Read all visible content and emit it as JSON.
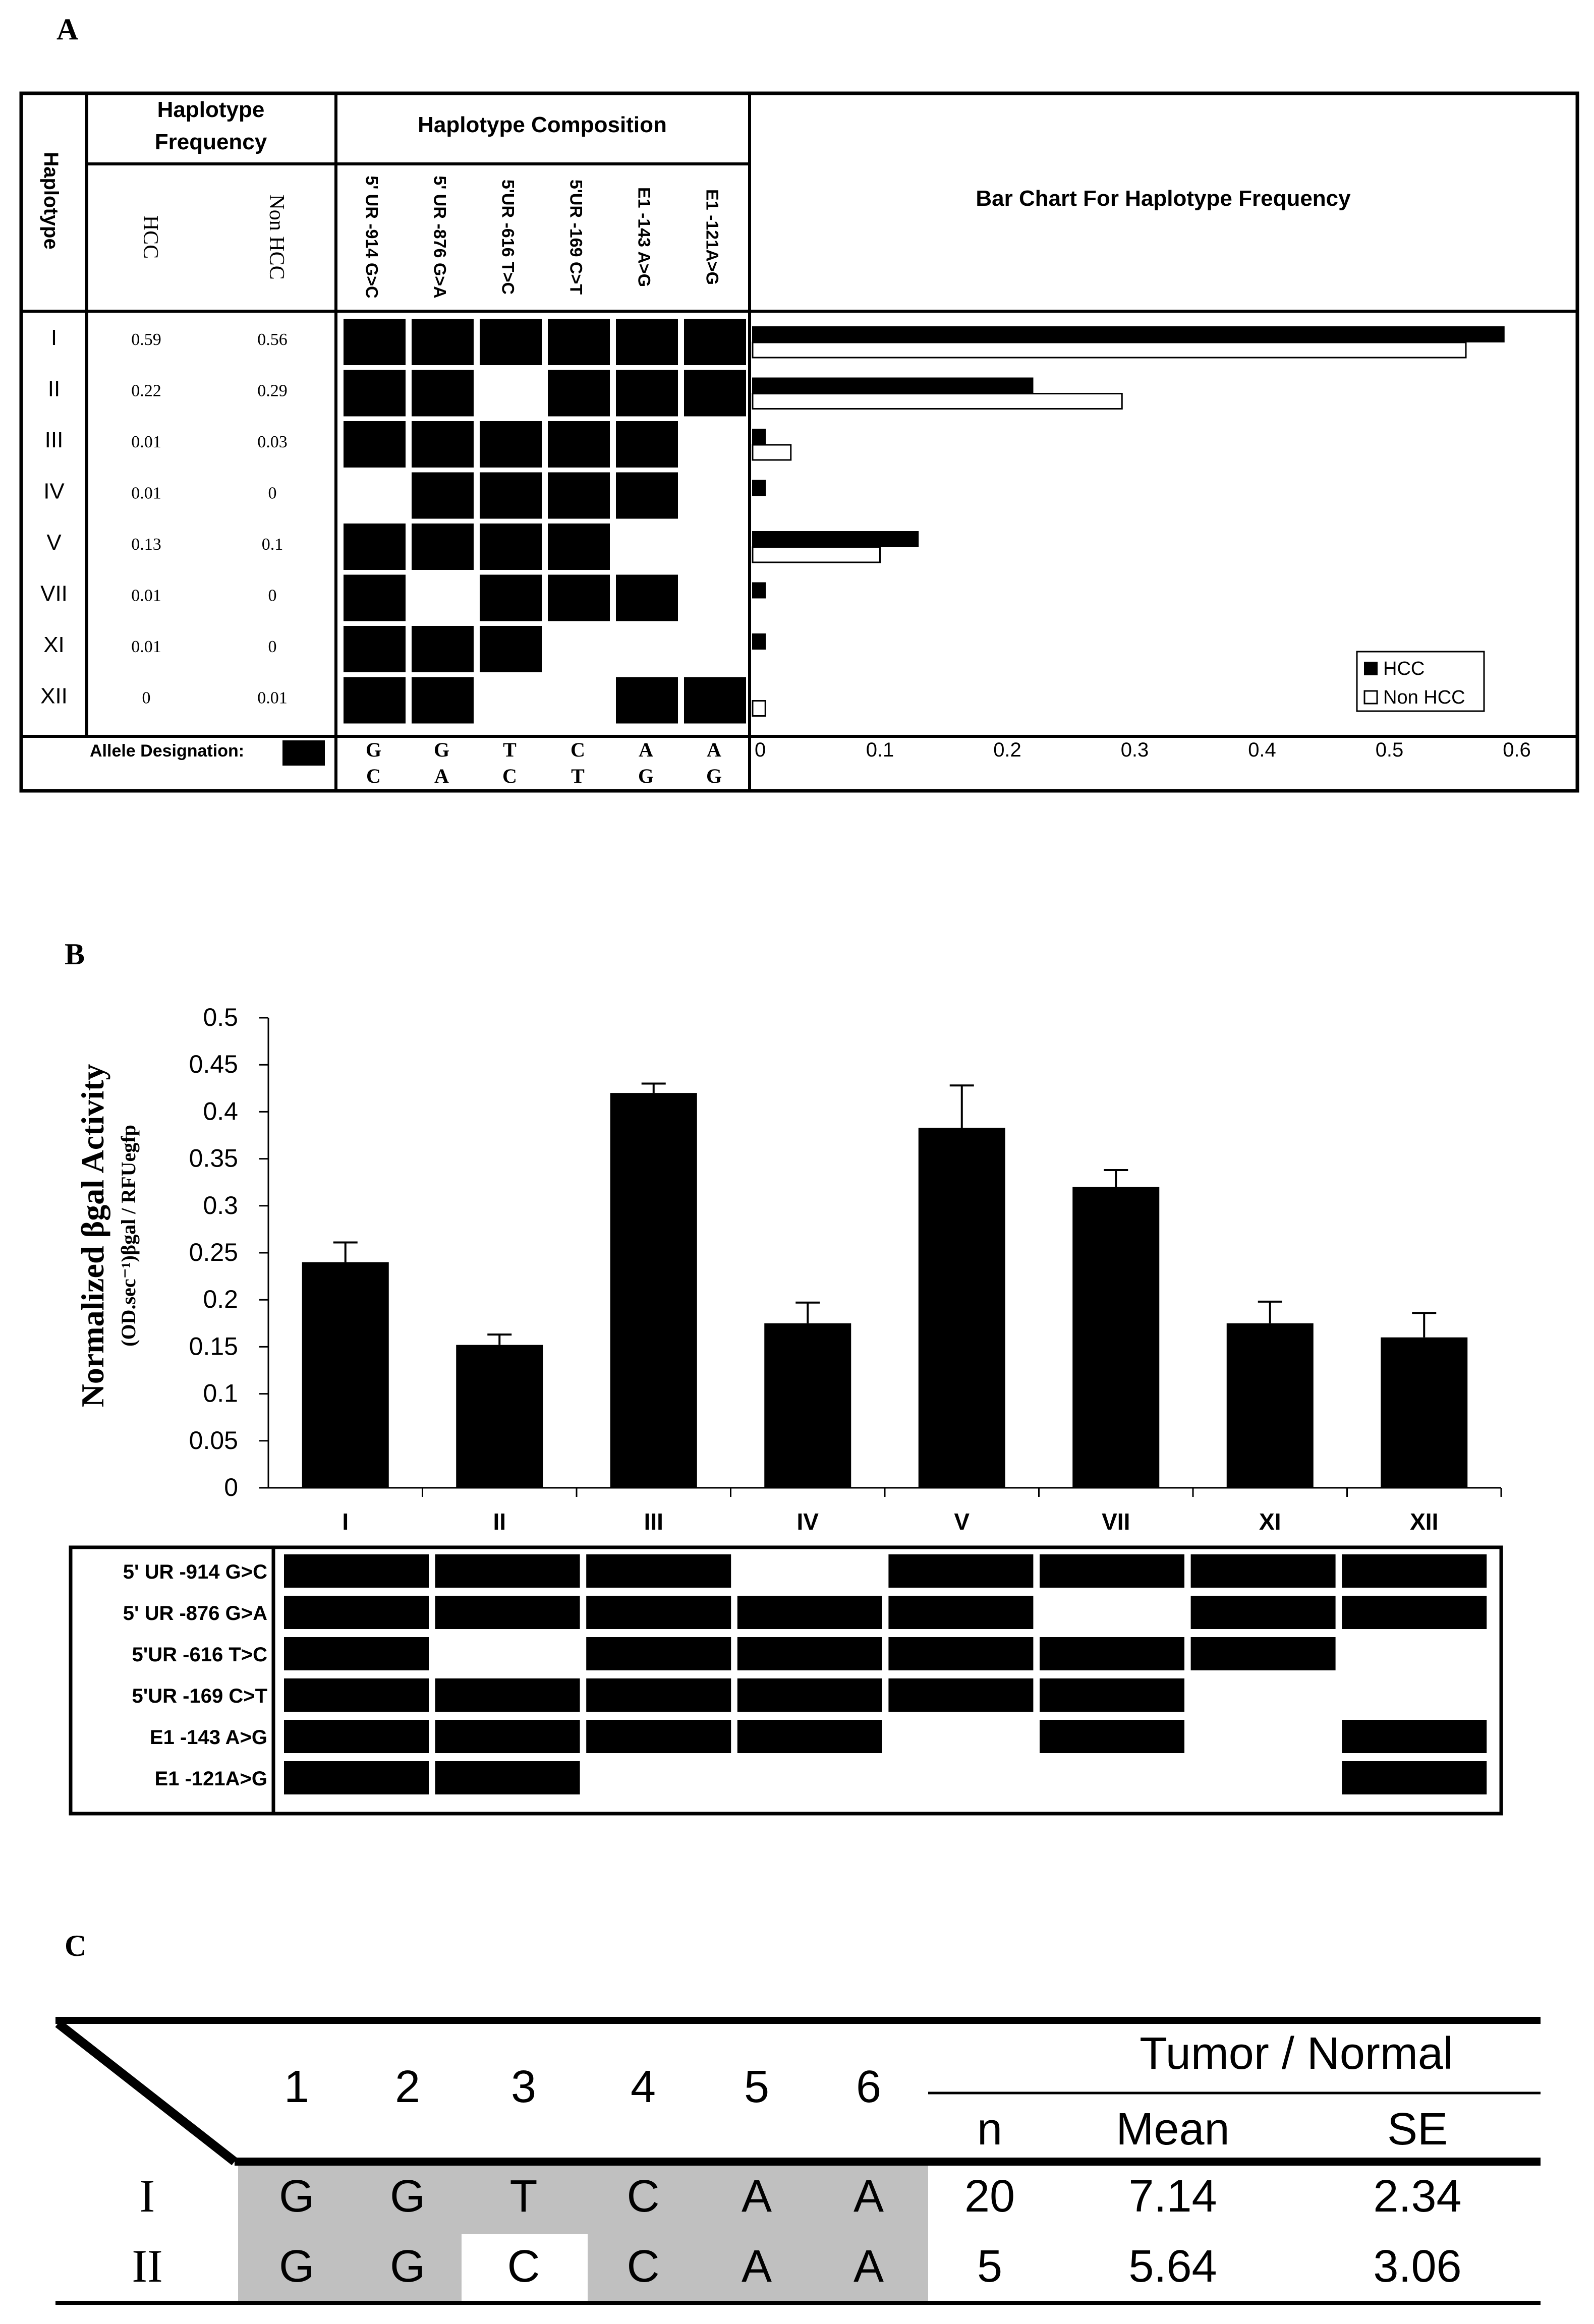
{
  "panel_a": {
    "label": "A",
    "header_haplotype": "Haplotype",
    "header_freq_line1": "Haplotype",
    "header_freq_line2": "Frequency",
    "header_composition": "Haplotype Composition",
    "header_chart": "Bar Chart For Haplotype Frequency",
    "col_hcc": "HCC",
    "col_nonhcc": "Non HCC",
    "snp_columns": [
      "5' UR -914 G>C",
      "5' UR -876 G>A",
      "5'UR -616 T>C",
      "5'UR -169 C>T",
      "E1 -143 A>G",
      "E1 -121A>G"
    ],
    "allele_label": "Allele Designation:",
    "allele_top": [
      "G",
      "G",
      "T",
      "C",
      "A",
      "A"
    ],
    "allele_bottom": [
      "C",
      "A",
      "C",
      "T",
      "G",
      "G"
    ],
    "rows": [
      {
        "haplotype": "I",
        "hcc": "0.59",
        "nonhcc": "0.56",
        "composition": [
          1,
          1,
          1,
          1,
          1,
          1
        ]
      },
      {
        "haplotype": "II",
        "hcc": "0.22",
        "nonhcc": "0.29",
        "composition": [
          1,
          1,
          0,
          1,
          1,
          1
        ]
      },
      {
        "haplotype": "III",
        "hcc": "0.01",
        "nonhcc": "0.03",
        "composition": [
          1,
          1,
          1,
          1,
          1,
          0
        ]
      },
      {
        "haplotype": "IV",
        "hcc": "0.01",
        "nonhcc": "0",
        "composition": [
          0,
          1,
          1,
          1,
          1,
          0
        ]
      },
      {
        "haplotype": "V",
        "hcc": "0.13",
        "nonhcc": "0.1",
        "composition": [
          1,
          1,
          1,
          1,
          0,
          0
        ]
      },
      {
        "haplotype": "VII",
        "hcc": "0.01",
        "nonhcc": "0",
        "composition": [
          1,
          0,
          1,
          1,
          1,
          0
        ]
      },
      {
        "haplotype": "XI",
        "hcc": "0.01",
        "nonhcc": "0",
        "composition": [
          1,
          1,
          1,
          0,
          0,
          0
        ]
      },
      {
        "haplotype": "XII",
        "hcc": "0",
        "nonhcc": "0.01",
        "composition": [
          1,
          1,
          0,
          0,
          1,
          1
        ]
      }
    ]
  },
  "panel_b": {
    "label": "B",
    "ylabel_main": "Normalized βgal Activity",
    "ylabel_unit": "(OD.sec⁻¹)βgal / RFUegfp",
    "snp_rows": [
      "5' UR -914 G>C",
      "5' UR -876 G>A",
      "5'UR -616 T>C",
      "5'UR -169 C>T",
      "E1 -143 A>G",
      "E1 -121A>G"
    ],
    "composition": [
      [
        1,
        1,
        1,
        0,
        1,
        1,
        1,
        1
      ],
      [
        1,
        1,
        1,
        1,
        1,
        0,
        1,
        1
      ],
      [
        1,
        0,
        1,
        1,
        1,
        1,
        1,
        0
      ],
      [
        1,
        1,
        1,
        1,
        1,
        1,
        0,
        0
      ],
      [
        1,
        1,
        1,
        1,
        0,
        1,
        0,
        1
      ],
      [
        1,
        1,
        0,
        0,
        0,
        0,
        0,
        1
      ]
    ]
  },
  "panel_c": {
    "label": "C",
    "col_numbers": [
      "1",
      "2",
      "3",
      "4",
      "5",
      "6"
    ],
    "group_header": "Tumor / Normal",
    "sub_headers": [
      "n",
      "Mean",
      "SE"
    ],
    "rows": [
      {
        "haplotype": "I",
        "alleles": [
          "G",
          "G",
          "T",
          "C",
          "A",
          "A"
        ],
        "shaded": [
          1,
          1,
          1,
          1,
          1,
          1
        ],
        "n": "20",
        "mean": "7.14",
        "se": "2.34"
      },
      {
        "haplotype": "II",
        "alleles": [
          "G",
          "G",
          "C",
          "C",
          "A",
          "A"
        ],
        "shaded": [
          1,
          1,
          0,
          1,
          1,
          1
        ],
        "n": "5",
        "mean": "5.64",
        "se": "3.06"
      }
    ]
  },
  "chart_data": [
    {
      "type": "bar",
      "orientation": "horizontal",
      "title": "Bar Chart For Haplotype Frequency",
      "categories": [
        "I",
        "II",
        "III",
        "IV",
        "V",
        "VII",
        "XI",
        "XII"
      ],
      "series": [
        {
          "name": "HCC",
          "values": [
            0.59,
            0.22,
            0.01,
            0.01,
            0.13,
            0.01,
            0.01,
            0.0
          ],
          "color": "#000000"
        },
        {
          "name": "Non HCC",
          "values": [
            0.56,
            0.29,
            0.03,
            0.0,
            0.1,
            0.0,
            0.0,
            0.01
          ],
          "color": "#ffffff"
        }
      ],
      "xlim": [
        0,
        0.6
      ],
      "xticks": [
        "0",
        "0.1",
        "0.2",
        "0.3",
        "0.4",
        "0.5",
        "0.6"
      ],
      "legend": "bottom-right"
    },
    {
      "type": "bar",
      "categories": [
        "I",
        "II",
        "III",
        "IV",
        "V",
        "VII",
        "XI",
        "XII"
      ],
      "values": [
        0.24,
        0.152,
        0.42,
        0.175,
        0.383,
        0.32,
        0.175,
        0.16
      ],
      "errors": [
        0.021,
        0.011,
        0.01,
        0.022,
        0.045,
        0.018,
        0.023,
        0.026
      ],
      "ylabel": "Normalized βgal Activity (OD.sec⁻¹)βgal / RFUegfp",
      "ylim": [
        0,
        0.5
      ],
      "yticks": [
        "0",
        "0.05",
        "0.1",
        "0.15",
        "0.2",
        "0.25",
        "0.3",
        "0.35",
        "0.4",
        "0.45",
        "0.5"
      ],
      "color": "#000000"
    }
  ]
}
